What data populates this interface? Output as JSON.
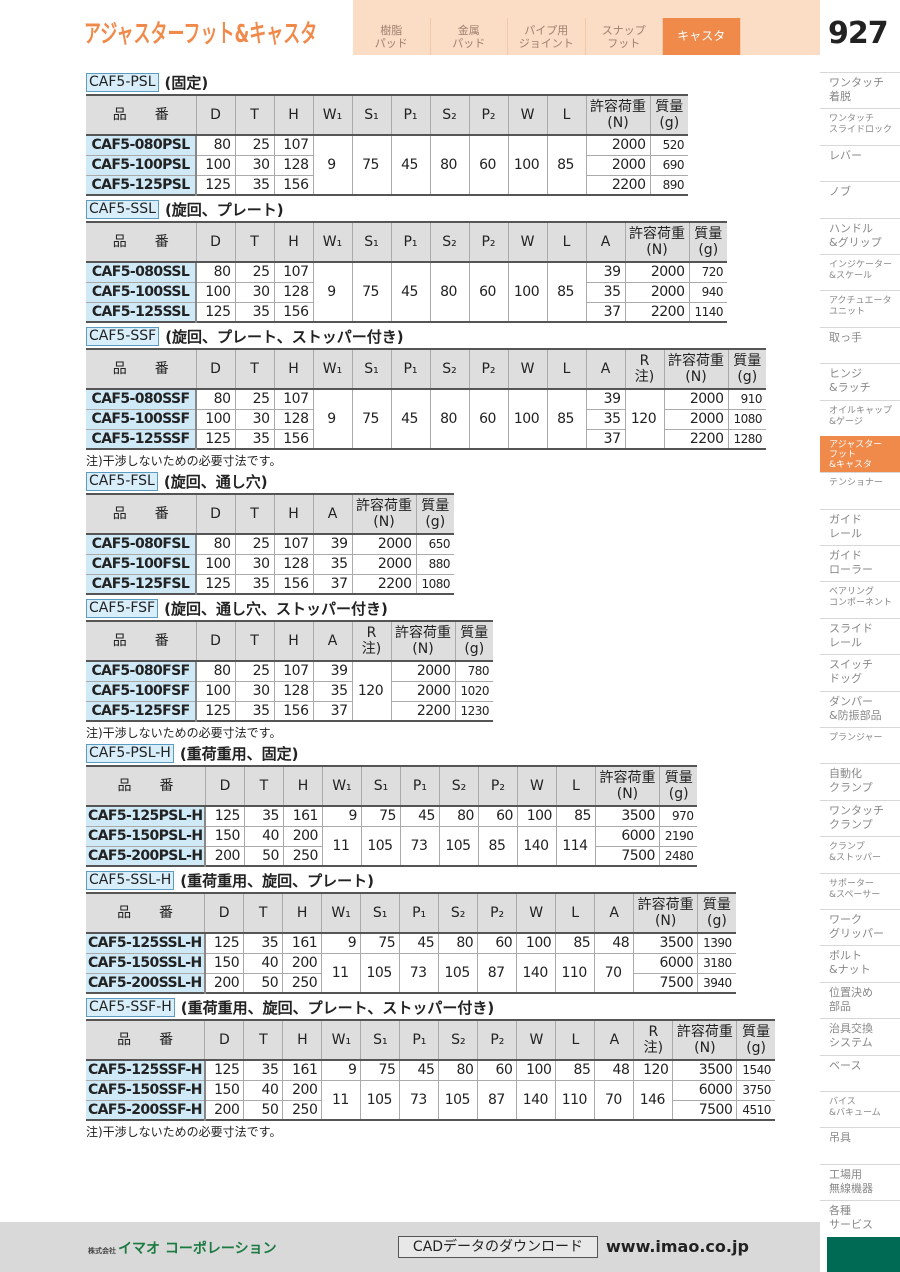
{
  "header": {
    "title": "アジャスターフット&キャスタ",
    "page_number": "927",
    "tabs": [
      {
        "label": "樹脂\nパッド",
        "active": false
      },
      {
        "label": "金属\nパッド",
        "active": false
      },
      {
        "label": "パイプ用\nジョイント",
        "active": false
      },
      {
        "label": "スナップ\nフット",
        "active": false
      },
      {
        "label": "キャスタ",
        "active": true
      }
    ]
  },
  "colors": {
    "accent": "#f08a4b",
    "part_no_bg": "#cfe9f7",
    "green": "#006a55"
  },
  "sidebar": {
    "items": [
      {
        "label": "ワンタッチ\n着脱"
      },
      {
        "label": "ワンタッチ\nスライドロック",
        "small": true
      },
      {
        "label": "レバー"
      },
      {
        "label": "ノブ"
      },
      {
        "label": "ハンドル\n&グリップ"
      },
      {
        "label": "インジケーター\n&スケール",
        "small": true
      },
      {
        "label": "アクチュエータ\nユニット",
        "small": true
      },
      {
        "label": "取っ手"
      },
      {
        "label": "ヒンジ\n&ラッチ"
      },
      {
        "label": "オイルキャップ\n&ゲージ",
        "small": true
      },
      {
        "label": "アジャスター\nフット\n&キャスタ",
        "small": true,
        "active": true
      },
      {
        "label": "テンショナー",
        "small": true
      },
      {
        "label": "ガイド\nレール"
      },
      {
        "label": "ガイド\nローラー"
      },
      {
        "label": "ベアリング\nコンポーネント",
        "small": true
      },
      {
        "label": "スライド\nレール"
      },
      {
        "label": "スイッチ\nドッグ"
      },
      {
        "label": "ダンパー\n&防振部品"
      },
      {
        "label": "プランジャー",
        "small": true
      },
      {
        "label": "自動化\nクランプ"
      },
      {
        "label": "ワンタッチ\nクランプ"
      },
      {
        "label": "クランプ\n&ストッパー",
        "small": true
      },
      {
        "label": "サポーター\n&スペーサー",
        "small": true
      },
      {
        "label": "ワーク\nグリッパー"
      },
      {
        "label": "ボルト\n&ナット"
      },
      {
        "label": "位置決め\n部品"
      },
      {
        "label": "治具交換\nシステム"
      },
      {
        "label": "ベース"
      },
      {
        "label": "バイス\n&バキューム",
        "small": true
      },
      {
        "label": "吊具"
      },
      {
        "label": "工場用\n無線機器"
      },
      {
        "label": "各種\nサービス"
      }
    ]
  },
  "sections": [
    {
      "code": "CAF5-PSL",
      "desc": "(固定)",
      "columns": [
        "品　　番",
        "D",
        "T",
        "H",
        "W₁",
        "S₁",
        "P₁",
        "S₂",
        "P₂",
        "W",
        "L",
        "許容荷重\n(N)",
        "質量\n(g)"
      ],
      "rows": [
        [
          "CAF5-080PSL",
          "80",
          "25",
          "107",
          "9",
          "75",
          "45",
          "80",
          "60",
          "100",
          "85",
          "2000",
          "520"
        ],
        [
          "CAF5-100PSL",
          "100",
          "30",
          "128",
          null,
          null,
          null,
          null,
          null,
          null,
          null,
          "2000",
          "690"
        ],
        [
          "CAF5-125PSL",
          "125",
          "35",
          "156",
          null,
          null,
          null,
          null,
          null,
          null,
          null,
          "2200",
          "890"
        ]
      ]
    },
    {
      "code": "CAF5-SSL",
      "desc": "(旋回、プレート)",
      "columns": [
        "品　　番",
        "D",
        "T",
        "H",
        "W₁",
        "S₁",
        "P₁",
        "S₂",
        "P₂",
        "W",
        "L",
        "A",
        "許容荷重\n(N)",
        "質量\n(g)"
      ],
      "rows": [
        [
          "CAF5-080SSL",
          "80",
          "25",
          "107",
          "9",
          "75",
          "45",
          "80",
          "60",
          "100",
          "85",
          "39",
          "2000",
          "720"
        ],
        [
          "CAF5-100SSL",
          "100",
          "30",
          "128",
          null,
          null,
          null,
          null,
          null,
          null,
          null,
          "35",
          "2000",
          "940"
        ],
        [
          "CAF5-125SSL",
          "125",
          "35",
          "156",
          null,
          null,
          null,
          null,
          null,
          null,
          null,
          "37",
          "2200",
          "1140"
        ]
      ]
    },
    {
      "code": "CAF5-SSF",
      "desc": "(旋回、プレート、ストッパー付き)",
      "columns": [
        "品　　番",
        "D",
        "T",
        "H",
        "W₁",
        "S₁",
        "P₁",
        "S₂",
        "P₂",
        "W",
        "L",
        "A",
        "R\n注)",
        "許容荷重\n(N)",
        "質量\n(g)"
      ],
      "rows": [
        [
          "CAF5-080SSF",
          "80",
          "25",
          "107",
          "9",
          "75",
          "45",
          "80",
          "60",
          "100",
          "85",
          "39",
          "120",
          "2000",
          "910"
        ],
        [
          "CAF5-100SSF",
          "100",
          "30",
          "128",
          null,
          null,
          null,
          null,
          null,
          null,
          null,
          "35",
          null,
          "2000",
          "1080"
        ],
        [
          "CAF5-125SSF",
          "125",
          "35",
          "156",
          null,
          null,
          null,
          null,
          null,
          null,
          null,
          "37",
          null,
          "2200",
          "1280"
        ]
      ],
      "note": "注)干渉しないための必要寸法です。"
    },
    {
      "code": "CAF5-FSL",
      "desc": "(旋回、通し穴)",
      "columns": [
        "品　　番",
        "D",
        "T",
        "H",
        "A",
        "許容荷重\n(N)",
        "質量\n(g)"
      ],
      "rows": [
        [
          "CAF5-080FSL",
          "80",
          "25",
          "107",
          "39",
          "2000",
          "650"
        ],
        [
          "CAF5-100FSL",
          "100",
          "30",
          "128",
          "35",
          "2000",
          "880"
        ],
        [
          "CAF5-125FSL",
          "125",
          "35",
          "156",
          "37",
          "2200",
          "1080"
        ]
      ]
    },
    {
      "code": "CAF5-FSF",
      "desc": "(旋回、通し穴、ストッパー付き)",
      "columns": [
        "品　　番",
        "D",
        "T",
        "H",
        "A",
        "R\n注)",
        "許容荷重\n(N)",
        "質量\n(g)"
      ],
      "rows": [
        [
          "CAF5-080FSF",
          "80",
          "25",
          "107",
          "39",
          "120",
          "2000",
          "780"
        ],
        [
          "CAF5-100FSF",
          "100",
          "30",
          "128",
          "35",
          null,
          "2000",
          "1020"
        ],
        [
          "CAF5-125FSF",
          "125",
          "35",
          "156",
          "37",
          null,
          "2200",
          "1230"
        ]
      ],
      "note": "注)干渉しないための必要寸法です。"
    },
    {
      "code": "CAF5-PSL-H",
      "desc": "(重荷重用、固定)",
      "columns": [
        "品　　番",
        "D",
        "T",
        "H",
        "W₁",
        "S₁",
        "P₁",
        "S₂",
        "P₂",
        "W",
        "L",
        "許容荷重\n(N)",
        "質量\n(g)"
      ],
      "rows": [
        [
          "CAF5-125PSL-H",
          "125",
          "35",
          "161",
          "9",
          "75",
          "45",
          "80",
          "60",
          "100",
          "85",
          "3500",
          "970"
        ],
        [
          "CAF5-150PSL-H",
          "150",
          "40",
          "200",
          "11",
          "105",
          "73",
          "105",
          "85",
          "140",
          "114",
          "6000",
          "2190"
        ],
        [
          "CAF5-200PSL-H",
          "200",
          "50",
          "250",
          null,
          null,
          null,
          null,
          null,
          null,
          null,
          "7500",
          "2480"
        ]
      ]
    },
    {
      "code": "CAF5-SSL-H",
      "desc": "(重荷重用、旋回、プレート)",
      "columns": [
        "品　　番",
        "D",
        "T",
        "H",
        "W₁",
        "S₁",
        "P₁",
        "S₂",
        "P₂",
        "W",
        "L",
        "A",
        "許容荷重\n(N)",
        "質量\n(g)"
      ],
      "rows": [
        [
          "CAF5-125SSL-H",
          "125",
          "35",
          "161",
          "9",
          "75",
          "45",
          "80",
          "60",
          "100",
          "85",
          "48",
          "3500",
          "1390"
        ],
        [
          "CAF5-150SSL-H",
          "150",
          "40",
          "200",
          "11",
          "105",
          "73",
          "105",
          "87",
          "140",
          "110",
          "70",
          "6000",
          "3180"
        ],
        [
          "CAF5-200SSL-H",
          "200",
          "50",
          "250",
          null,
          null,
          null,
          null,
          null,
          null,
          null,
          null,
          "7500",
          "3940"
        ]
      ]
    },
    {
      "code": "CAF5-SSF-H",
      "desc": "(重荷重用、旋回、プレート、ストッパー付き)",
      "columns": [
        "品　　番",
        "D",
        "T",
        "H",
        "W₁",
        "S₁",
        "P₁",
        "S₂",
        "P₂",
        "W",
        "L",
        "A",
        "R\n注)",
        "許容荷重\n(N)",
        "質量\n(g)"
      ],
      "rows": [
        [
          "CAF5-125SSF-H",
          "125",
          "35",
          "161",
          "9",
          "75",
          "45",
          "80",
          "60",
          "100",
          "85",
          "48",
          "120",
          "3500",
          "1540"
        ],
        [
          "CAF5-150SSF-H",
          "150",
          "40",
          "200",
          "11",
          "105",
          "73",
          "105",
          "87",
          "140",
          "110",
          "70",
          "146",
          "6000",
          "3750"
        ],
        [
          "CAF5-200SSF-H",
          "200",
          "50",
          "250",
          null,
          null,
          null,
          null,
          null,
          null,
          null,
          null,
          null,
          "7500",
          "4510"
        ]
      ],
      "note": "注)干渉しないための必要寸法です。"
    }
  ],
  "footer": {
    "company_prefix": "株式会社",
    "company": "イマオ コーポレーション",
    "cad_button": "CADデータのダウンロード",
    "url": "www.imao.co.jp"
  }
}
